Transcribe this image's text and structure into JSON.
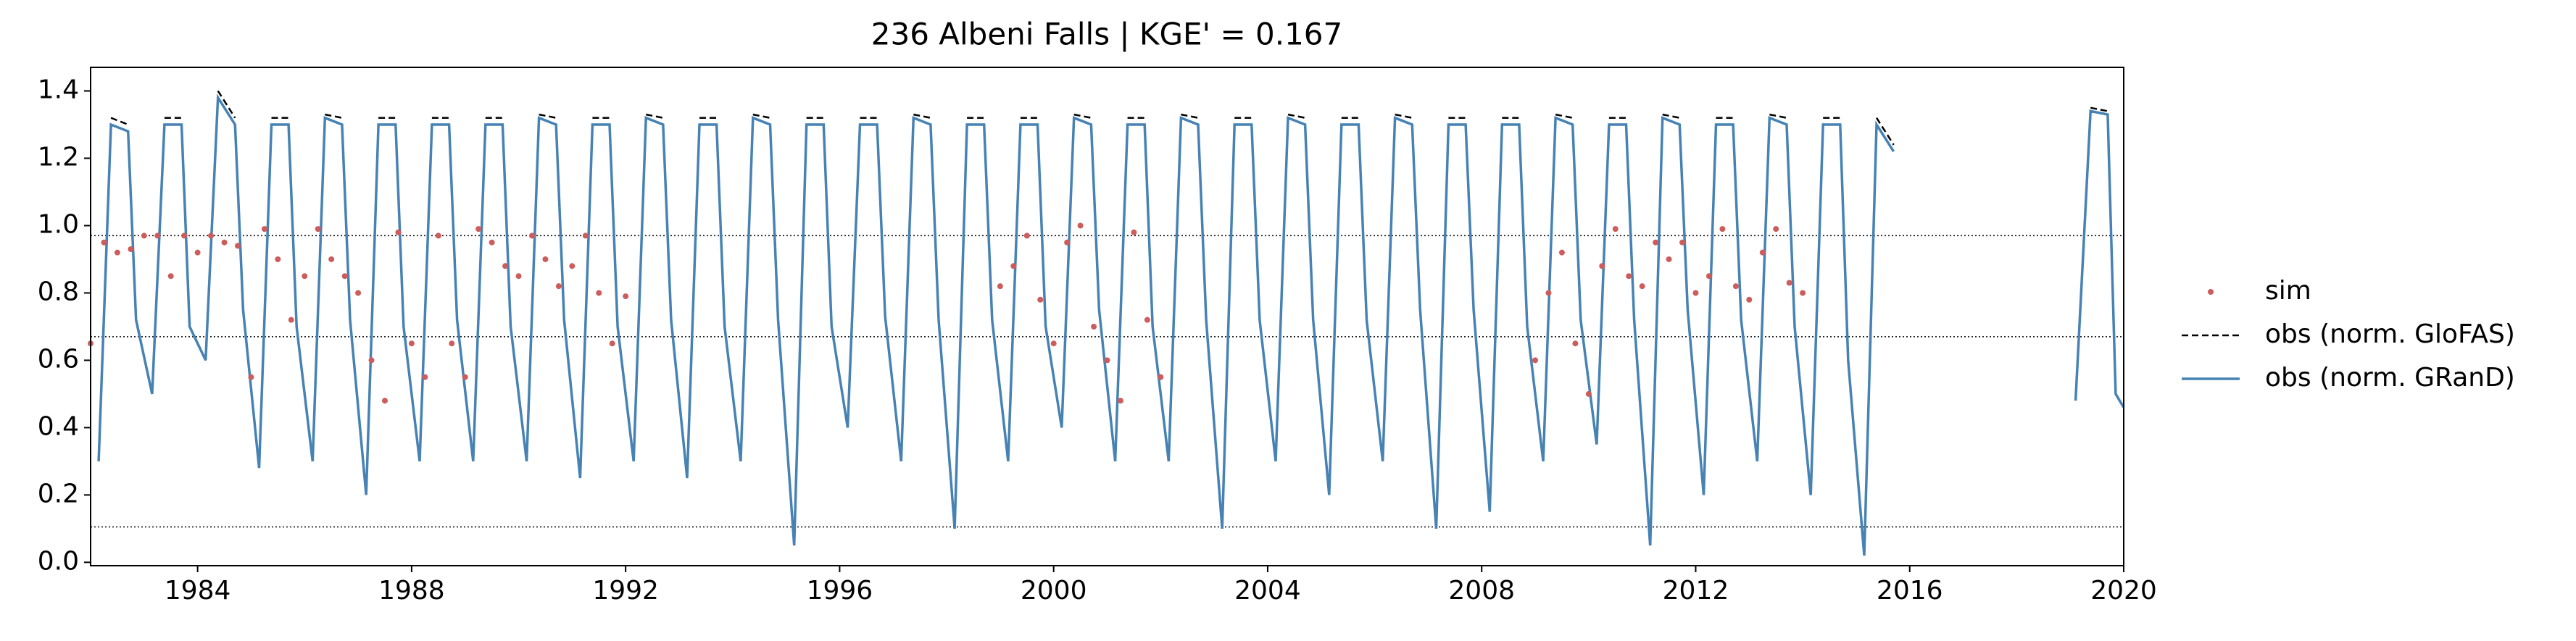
{
  "chart_data": {
    "type": "line",
    "title": "236  Albeni Falls | KGE' = 0.167",
    "xlim": [
      1982,
      2020
    ],
    "xticks": [
      1984,
      1988,
      1992,
      1996,
      2000,
      2004,
      2008,
      2012,
      2016,
      2020
    ],
    "ylim": [
      -0.01,
      1.47
    ],
    "yticks": [
      {
        "value": 0,
        "label": "0.0"
      },
      0.2,
      0.4,
      0.6,
      0.8,
      {
        "value": 1,
        "label": "1.0"
      },
      1.2,
      1.4
    ],
    "hlines": [
      0.97,
      0.67,
      0.105
    ],
    "legend": "right",
    "x": [
      1982.15,
      1982.38,
      1982.7,
      1982.85,
      1983.15,
      1983.38,
      1983.7,
      1983.85,
      1984.15,
      1984.38,
      1984.7,
      1984.85,
      1985.15,
      1985.38,
      1985.7,
      1985.85,
      1986.15,
      1986.38,
      1986.7,
      1986.85,
      1987.15,
      1987.38,
      1987.7,
      1987.85,
      1988.15,
      1988.38,
      1988.7,
      1988.85,
      1989.15,
      1989.38,
      1989.7,
      1989.85,
      1990.15,
      1990.38,
      1990.7,
      1990.85,
      1991.15,
      1991.38,
      1991.7,
      1991.85,
      1992.15,
      1992.38,
      1992.7,
      1992.85,
      1993.15,
      1993.38,
      1993.7,
      1993.85,
      1994.15,
      1994.38,
      1994.7,
      1994.85,
      1995.15,
      1995.38,
      1995.7,
      1995.85,
      1996.15,
      1996.38,
      1996.7,
      1996.85,
      1997.15,
      1997.38,
      1997.7,
      1997.85,
      1998.15,
      1998.38,
      1998.7,
      1998.85,
      1999.15,
      1999.38,
      1999.7,
      1999.85,
      2000.15,
      2000.38,
      2000.7,
      2000.85,
      2001.15,
      2001.38,
      2001.7,
      2001.85,
      2002.15,
      2002.38,
      2002.7,
      2002.85,
      2003.15,
      2003.38,
      2003.7,
      2003.85,
      2004.15,
      2004.38,
      2004.7,
      2004.85,
      2005.15,
      2005.38,
      2005.7,
      2005.85,
      2006.15,
      2006.38,
      2006.7,
      2006.85,
      2007.15,
      2007.38,
      2007.7,
      2007.85,
      2008.15,
      2008.38,
      2008.7,
      2008.85,
      2009.15,
      2009.38,
      2009.7,
      2009.85,
      2010.15,
      2010.38,
      2010.7,
      2010.85,
      2011.15,
      2011.38,
      2011.7,
      2011.85,
      2012.15,
      2012.38,
      2012.7,
      2012.85,
      2013.15,
      2013.38,
      2013.7,
      2013.85,
      2014.15,
      2014.38,
      2014.7,
      2014.85,
      2015.15,
      2015.38,
      2015.7,
      2017.5,
      2019.1,
      2019.38,
      2019.7,
      2019.85,
      2020.0
    ],
    "series": [
      {
        "name": "sim",
        "color": "#cd5c5c",
        "style": "points",
        "x": [
          1982.0,
          1982.25,
          1982.5,
          1982.75,
          1983.0,
          1983.25,
          1983.5,
          1983.75,
          1984.0,
          1984.25,
          1984.5,
          1984.75,
          1985.0,
          1985.25,
          1985.5,
          1985.75,
          1986.0,
          1986.25,
          1986.5,
          1986.75,
          1987.0,
          1987.25,
          1987.5,
          1987.75,
          1988.0,
          1988.25,
          1988.5,
          1988.75,
          1989.0,
          1989.25,
          1989.5,
          1989.75,
          1990.0,
          1990.25,
          1990.5,
          1990.75,
          1991.0,
          1991.25,
          1991.5,
          1991.75,
          1992.0,
          1999.0,
          1999.25,
          1999.5,
          1999.75,
          2000.0,
          2000.25,
          2000.5,
          2000.75,
          2001.0,
          2001.25,
          2001.5,
          2001.75,
          2002.0,
          2009.0,
          2009.25,
          2009.5,
          2009.75,
          2010.0,
          2010.25,
          2010.5,
          2010.75,
          2011.0,
          2011.25,
          2011.5,
          2011.75,
          2012.0,
          2012.25,
          2012.5,
          2012.75,
          2013.0,
          2013.25,
          2013.5,
          2013.75,
          2014.0
        ],
        "values": [
          0.65,
          0.95,
          0.92,
          0.93,
          0.97,
          0.97,
          0.85,
          0.97,
          0.92,
          0.97,
          0.95,
          0.94,
          0.55,
          0.99,
          0.9,
          0.72,
          0.85,
          0.99,
          0.9,
          0.85,
          0.8,
          0.6,
          0.48,
          0.98,
          0.65,
          0.55,
          0.97,
          0.65,
          0.55,
          0.99,
          0.95,
          0.88,
          0.85,
          0.97,
          0.9,
          0.82,
          0.88,
          0.97,
          0.8,
          0.65,
          0.79,
          0.82,
          0.88,
          0.97,
          0.78,
          0.65,
          0.95,
          1.0,
          0.7,
          0.6,
          0.48,
          0.98,
          0.72,
          0.55,
          0.6,
          0.8,
          0.92,
          0.65,
          0.5,
          0.88,
          0.99,
          0.85,
          0.82,
          0.95,
          0.9,
          0.95,
          0.8,
          0.85,
          0.99,
          0.82,
          0.78,
          0.92,
          0.99,
          0.83,
          0.8
        ]
      },
      {
        "name": "obs (norm. GloFAS)",
        "color": "#000000",
        "style": "dashed",
        "values": [
          null,
          1.32,
          1.3,
          null,
          null,
          1.32,
          1.32,
          null,
          null,
          1.4,
          1.32,
          null,
          null,
          1.32,
          1.32,
          null,
          null,
          1.33,
          1.32,
          null,
          null,
          1.32,
          1.32,
          null,
          null,
          1.32,
          1.32,
          null,
          null,
          1.32,
          1.32,
          null,
          null,
          1.33,
          1.32,
          null,
          null,
          1.32,
          1.32,
          null,
          null,
          1.33,
          1.32,
          null,
          null,
          1.32,
          1.32,
          null,
          null,
          1.33,
          1.32,
          null,
          null,
          1.32,
          1.32,
          null,
          null,
          1.32,
          1.32,
          null,
          null,
          1.33,
          1.32,
          null,
          null,
          1.32,
          1.32,
          null,
          null,
          1.32,
          1.32,
          null,
          null,
          1.33,
          1.32,
          null,
          null,
          1.32,
          1.32,
          null,
          null,
          1.33,
          1.32,
          null,
          null,
          1.32,
          1.32,
          null,
          null,
          1.33,
          1.32,
          null,
          null,
          1.32,
          1.32,
          null,
          null,
          1.33,
          1.32,
          null,
          null,
          1.32,
          1.32,
          null,
          null,
          1.32,
          1.32,
          null,
          null,
          1.33,
          1.32,
          null,
          null,
          1.32,
          1.32,
          null,
          null,
          1.33,
          1.32,
          null,
          null,
          1.32,
          1.32,
          null,
          null,
          1.33,
          1.32,
          null,
          null,
          1.32,
          1.32,
          null,
          null,
          1.32,
          1.24,
          null,
          null,
          1.35,
          1.34,
          null,
          null
        ]
      },
      {
        "name": "obs (norm. GRanD)",
        "color": "#4682b4",
        "style": "solid",
        "values": [
          0.3,
          1.3,
          1.28,
          0.72,
          0.5,
          1.3,
          1.3,
          0.7,
          0.6,
          1.38,
          1.3,
          0.75,
          0.28,
          1.3,
          1.3,
          0.7,
          0.3,
          1.32,
          1.3,
          0.72,
          0.2,
          1.3,
          1.3,
          0.7,
          0.3,
          1.3,
          1.3,
          0.72,
          0.3,
          1.3,
          1.3,
          0.7,
          0.3,
          1.32,
          1.3,
          0.72,
          0.25,
          1.3,
          1.3,
          0.7,
          0.3,
          1.32,
          1.3,
          0.72,
          0.25,
          1.3,
          1.3,
          0.7,
          0.3,
          1.32,
          1.3,
          0.72,
          0.05,
          1.3,
          1.3,
          0.7,
          0.4,
          1.3,
          1.3,
          0.73,
          0.3,
          1.32,
          1.3,
          0.72,
          0.1,
          1.3,
          1.3,
          0.72,
          0.3,
          1.3,
          1.3,
          0.7,
          0.4,
          1.32,
          1.3,
          0.75,
          0.3,
          1.3,
          1.3,
          0.7,
          0.3,
          1.32,
          1.3,
          0.72,
          0.1,
          1.3,
          1.3,
          0.72,
          0.3,
          1.32,
          1.3,
          0.72,
          0.2,
          1.3,
          1.3,
          0.72,
          0.3,
          1.32,
          1.3,
          0.75,
          0.1,
          1.3,
          1.3,
          0.75,
          0.15,
          1.3,
          1.3,
          0.7,
          0.3,
          1.32,
          1.3,
          0.72,
          0.35,
          1.3,
          1.3,
          0.72,
          0.05,
          1.32,
          1.3,
          0.75,
          0.2,
          1.3,
          1.3,
          0.72,
          0.3,
          1.32,
          1.3,
          0.7,
          0.2,
          1.3,
          1.3,
          0.6,
          0.02,
          1.3,
          1.22,
          null,
          0.48,
          1.34,
          1.33,
          0.5,
          0.46
        ]
      }
    ]
  }
}
